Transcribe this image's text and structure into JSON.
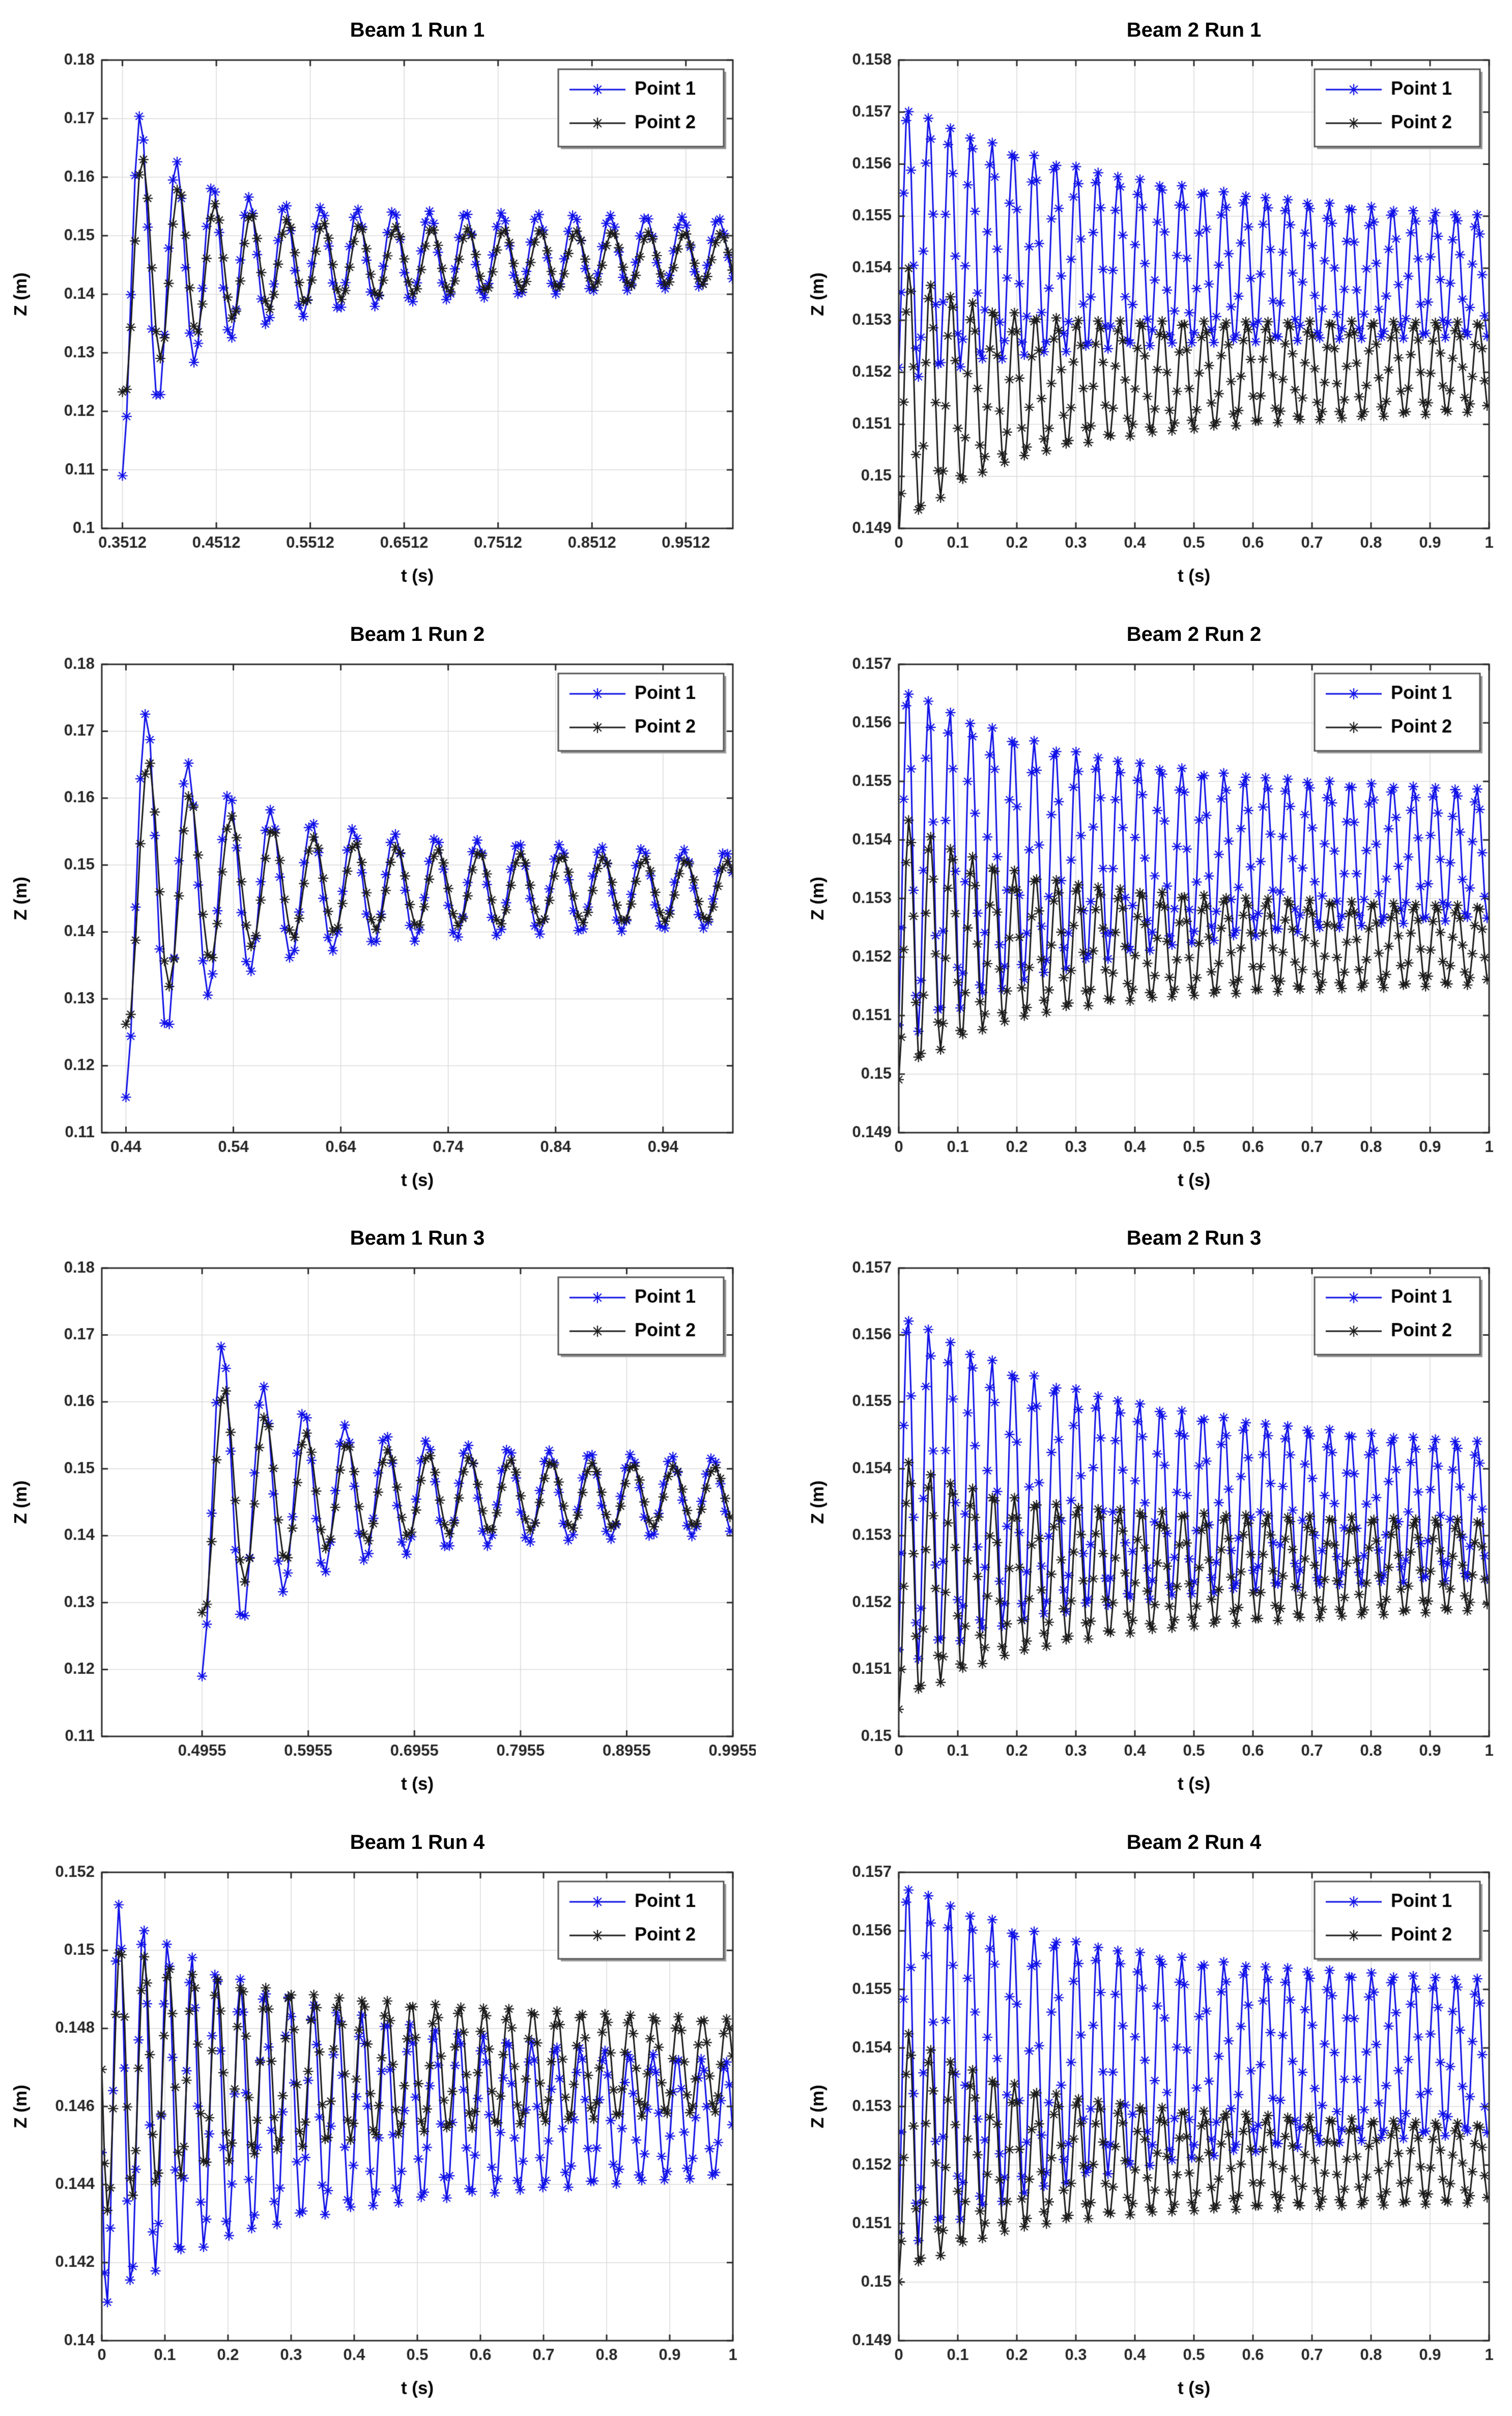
{
  "page": {
    "background": "#ffffff",
    "figure_rows": 4,
    "figure_cols": 2
  },
  "colors": {
    "point1": "#1010e8",
    "point2": "#1a1a1a",
    "grid": "#dadada",
    "axis_box": "#2b2b2b",
    "tick_label": "#262626",
    "legend_border": "#555555",
    "legend_bg": "#ffffff"
  },
  "chart_data": [
    {
      "id": "beam1-run1",
      "type": "line",
      "title": "Beam 1 Run 1",
      "xlabel": "t (s)",
      "ylabel": "Z (m)",
      "xlim": [
        0.3292,
        1.0012
      ],
      "ylim": [
        0.1,
        0.18
      ],
      "grid": true,
      "xtick_values": [
        0.3512,
        0.4512,
        0.5512,
        0.6512,
        0.7512,
        0.8512,
        0.9512
      ],
      "xtick_labels": [
        "0.3512",
        "0.4512",
        "0.5512",
        "0.6512",
        "0.7512",
        "0.8512",
        "0.9512"
      ],
      "ytick_values": [
        0.1,
        0.11,
        0.12,
        0.13,
        0.14,
        0.15,
        0.16,
        0.17,
        0.18
      ],
      "ytick_labels": [
        "0.1",
        "0.11",
        "0.12",
        "0.13",
        "0.14",
        "0.15",
        "0.16",
        "0.17",
        "0.18"
      ],
      "legend": {
        "position": "top-right",
        "entries": [
          "Point 1",
          "Point 2"
        ]
      },
      "series": [
        {
          "name": "Point 1",
          "color": "#1010e8",
          "marker": "asterisk",
          "signal": {
            "model": "damped_sine",
            "t_start": 0.3512,
            "t_end": 1.0012,
            "dt": 0.00448,
            "freq_hz": 26,
            "phase": -1.5708,
            "mean_start": 0.143,
            "mean_end": 0.1473,
            "mean_tau": 0.2,
            "amp_components": [
              {
                "a": 0.01,
                "tau": 1.2
              },
              {
                "a": 0.024,
                "tau": 0.06
              }
            ]
          }
        },
        {
          "name": "Point 2",
          "color": "#1a1a1a",
          "marker": "asterisk",
          "signal": {
            "model": "damped_sine",
            "t_start": 0.3512,
            "t_end": 1.0012,
            "dt": 0.00448,
            "freq_hz": 26,
            "phase": -1.97,
            "mean_start": 0.1445,
            "mean_end": 0.1462,
            "mean_tau": 0.25,
            "amp_components": [
              {
                "a": 0.007,
                "tau": 1.3
              },
              {
                "a": 0.016,
                "tau": 0.07
              }
            ]
          }
        }
      ]
    },
    {
      "id": "beam2-run1",
      "type": "line",
      "title": "Beam 2 Run 1",
      "xlabel": "t (s)",
      "ylabel": "Z (m)",
      "xlim": [
        0,
        1
      ],
      "ylim": [
        0.149,
        0.158
      ],
      "grid": true,
      "xtick_values": [
        0,
        0.1,
        0.2,
        0.3,
        0.4,
        0.5,
        0.6,
        0.7,
        0.8,
        0.9,
        1
      ],
      "xtick_labels": [
        "0",
        "0.1",
        "0.2",
        "0.3",
        "0.4",
        "0.5",
        "0.6",
        "0.7",
        "0.8",
        "0.9",
        "1"
      ],
      "ytick_values": [
        0.149,
        0.15,
        0.151,
        0.152,
        0.153,
        0.154,
        0.155,
        0.156,
        0.157,
        0.158
      ],
      "ytick_labels": [
        "0.149",
        "0.15",
        "0.151",
        "0.152",
        "0.153",
        "0.154",
        "0.155",
        "0.156",
        "0.157",
        "0.158"
      ],
      "legend": {
        "position": "top-right",
        "entries": [
          "Point 1",
          "Point 2"
        ]
      },
      "series": [
        {
          "name": "Point 1",
          "color": "#1010e8",
          "marker": "asterisk",
          "signal": {
            "model": "damped_sine",
            "t_start": 0,
            "t_end": 1,
            "dt": 0.00417,
            "freq_hz": 28,
            "phase": -1.1,
            "mean_start": 0.1545,
            "mean_end": 0.1537,
            "mean_tau": 0.6,
            "amp_components": [
              {
                "a": 0.0016,
                "tau": 3.0
              },
              {
                "a": 0.0011,
                "tau": 0.25
              }
            ]
          }
        },
        {
          "name": "Point 2",
          "color": "#1a1a1a",
          "marker": "asterisk",
          "signal": {
            "model": "damped_sine",
            "t_start": 0,
            "t_end": 1,
            "dt": 0.00417,
            "freq_hz": 28,
            "phase": -1.5,
            "mean_start": 0.1515,
            "mean_end": 0.1522,
            "mean_tau": 0.5,
            "amp_components": [
              {
                "a": 0.0012,
                "tau": 3.0
              },
              {
                "a": 0.0015,
                "tau": 0.12
              }
            ]
          }
        }
      ]
    },
    {
      "id": "beam1-run2",
      "type": "line",
      "title": "Beam 1 Run 2",
      "xlabel": "t (s)",
      "ylabel": "Z (m)",
      "xlim": [
        0.4175,
        1.005
      ],
      "ylim": [
        0.11,
        0.18
      ],
      "grid": true,
      "xtick_values": [
        0.44,
        0.54,
        0.64,
        0.74,
        0.84,
        0.94
      ],
      "xtick_labels": [
        "0.44",
        "0.54",
        "0.64",
        "0.74",
        "0.84",
        "0.94"
      ],
      "ytick_values": [
        0.11,
        0.12,
        0.13,
        0.14,
        0.15,
        0.16,
        0.17,
        0.18
      ],
      "ytick_labels": [
        "0.11",
        "0.12",
        "0.13",
        "0.14",
        "0.15",
        "0.16",
        "0.17",
        "0.18"
      ],
      "legend": {
        "position": "top-right",
        "entries": [
          "Point 1",
          "Point 2"
        ]
      },
      "series": [
        {
          "name": "Point 1",
          "color": "#1010e8",
          "marker": "asterisk",
          "signal": {
            "model": "damped_sine",
            "t_start": 0.44,
            "t_end": 1.005,
            "dt": 0.00448,
            "freq_hz": 26,
            "phase": -1.5708,
            "mean_start": 0.1468,
            "mean_end": 0.1462,
            "mean_tau": 0.4,
            "amp_components": [
              {
                "a": 0.0095,
                "tau": 1.1
              },
              {
                "a": 0.022,
                "tau": 0.07
              }
            ]
          }
        },
        {
          "name": "Point 2",
          "color": "#1a1a1a",
          "marker": "asterisk",
          "signal": {
            "model": "damped_sine",
            "t_start": 0.44,
            "t_end": 1.005,
            "dt": 0.00448,
            "freq_hz": 26,
            "phase": -1.9,
            "mean_start": 0.1475,
            "mean_end": 0.1457,
            "mean_tau": 0.4,
            "amp_components": [
              {
                "a": 0.007,
                "tau": 1.2
              },
              {
                "a": 0.0155,
                "tau": 0.07
              }
            ]
          }
        }
      ]
    },
    {
      "id": "beam2-run2",
      "type": "line",
      "title": "Beam 2 Run 2",
      "xlabel": "t (s)",
      "ylabel": "Z (m)",
      "xlim": [
        0,
        1
      ],
      "ylim": [
        0.149,
        0.157
      ],
      "grid": true,
      "xtick_values": [
        0,
        0.1,
        0.2,
        0.3,
        0.4,
        0.5,
        0.6,
        0.7,
        0.8,
        0.9,
        1
      ],
      "xtick_labels": [
        "0",
        "0.1",
        "0.2",
        "0.3",
        "0.4",
        "0.5",
        "0.6",
        "0.7",
        "0.8",
        "0.9",
        "1"
      ],
      "ytick_values": [
        0.149,
        0.15,
        0.151,
        0.152,
        0.153,
        0.154,
        0.155,
        0.156,
        0.157
      ],
      "ytick_labels": [
        "0.149",
        "0.15",
        "0.151",
        "0.152",
        "0.153",
        "0.154",
        "0.155",
        "0.156",
        "0.157"
      ],
      "legend": {
        "position": "top-right",
        "entries": [
          "Point 1",
          "Point 2"
        ]
      },
      "series": [
        {
          "name": "Point 1",
          "color": "#1010e8",
          "marker": "asterisk",
          "signal": {
            "model": "damped_sine",
            "t_start": 0,
            "t_end": 1,
            "dt": 0.00417,
            "freq_hz": 28,
            "phase": -1.1,
            "mean_start": 0.1536,
            "mean_end": 0.1538,
            "mean_tau": 0.6,
            "amp_components": [
              {
                "a": 0.0015,
                "tau": 3.0
              },
              {
                "a": 0.0016,
                "tau": 0.25
              }
            ]
          }
        },
        {
          "name": "Point 2",
          "color": "#1a1a1a",
          "marker": "asterisk",
          "signal": {
            "model": "damped_sine",
            "t_start": 0,
            "t_end": 1,
            "dt": 0.00417,
            "freq_hz": 28,
            "phase": -1.5,
            "mean_start": 0.1522,
            "mean_end": 0.1522,
            "mean_tau": 0.5,
            "amp_components": [
              {
                "a": 0.001,
                "tau": 2.5
              },
              {
                "a": 0.0013,
                "tau": 0.15
              }
            ]
          }
        }
      ]
    },
    {
      "id": "beam1-run3",
      "type": "line",
      "title": "Beam 1 Run 3",
      "xlabel": "t (s)",
      "ylabel": "Z (m)",
      "xlim": [
        0.401,
        0.9955
      ],
      "ylim": [
        0.11,
        0.18
      ],
      "grid": true,
      "xtick_values": [
        0.4955,
        0.5955,
        0.6955,
        0.7955,
        0.8955,
        0.9955
      ],
      "xtick_labels": [
        "0.4955",
        "0.5955",
        "0.6955",
        "0.7955",
        "0.8955",
        "0.9955"
      ],
      "ytick_values": [
        0.11,
        0.12,
        0.13,
        0.14,
        0.15,
        0.16,
        0.17,
        0.18
      ],
      "ytick_labels": [
        "0.11",
        "0.12",
        "0.13",
        "0.14",
        "0.15",
        "0.16",
        "0.17",
        "0.18"
      ],
      "legend": {
        "position": "top-right",
        "entries": [
          "Point 1",
          "Point 2"
        ]
      },
      "series": [
        {
          "name": "Point 1",
          "color": "#1010e8",
          "marker": "asterisk",
          "signal": {
            "model": "damped_sine",
            "t_start": 0.4955,
            "t_end": 0.9955,
            "dt": 0.00448,
            "freq_hz": 26,
            "phase": -1.5708,
            "mean_start": 0.146,
            "mean_end": 0.1458,
            "mean_tau": 0.4,
            "amp_components": [
              {
                "a": 0.009,
                "tau": 1.1
              },
              {
                "a": 0.018,
                "tau": 0.07
              }
            ]
          }
        },
        {
          "name": "Point 2",
          "color": "#1a1a1a",
          "marker": "asterisk",
          "signal": {
            "model": "damped_sine",
            "t_start": 0.4955,
            "t_end": 0.9955,
            "dt": 0.00448,
            "freq_hz": 26,
            "phase": -1.9,
            "mean_start": 0.1465,
            "mean_end": 0.1456,
            "mean_tau": 0.4,
            "amp_components": [
              {
                "a": 0.0065,
                "tau": 1.2
              },
              {
                "a": 0.0125,
                "tau": 0.07
              }
            ]
          }
        }
      ]
    },
    {
      "id": "beam2-run3",
      "type": "line",
      "title": "Beam 2 Run 3",
      "xlabel": "t (s)",
      "ylabel": "Z (m)",
      "xlim": [
        0,
        1
      ],
      "ylim": [
        0.15,
        0.157
      ],
      "grid": true,
      "xtick_values": [
        0,
        0.1,
        0.2,
        0.3,
        0.4,
        0.5,
        0.6,
        0.7,
        0.8,
        0.9,
        1
      ],
      "xtick_labels": [
        "0",
        "0.1",
        "0.2",
        "0.3",
        "0.4",
        "0.5",
        "0.6",
        "0.7",
        "0.8",
        "0.9",
        "1"
      ],
      "ytick_values": [
        0.15,
        0.151,
        0.152,
        0.153,
        0.154,
        0.155,
        0.156,
        0.157
      ],
      "ytick_labels": [
        "0.15",
        "0.151",
        "0.152",
        "0.153",
        "0.154",
        "0.155",
        "0.156",
        "0.157"
      ],
      "legend": {
        "position": "top-right",
        "entries": [
          "Point 1",
          "Point 2"
        ]
      },
      "series": [
        {
          "name": "Point 1",
          "color": "#1010e8",
          "marker": "asterisk",
          "signal": {
            "model": "damped_sine",
            "t_start": 0,
            "t_end": 1,
            "dt": 0.00417,
            "freq_hz": 28,
            "phase": -1.1,
            "mean_start": 0.1537,
            "mean_end": 0.1533,
            "mean_tau": 0.6,
            "amp_components": [
              {
                "a": 0.0014,
                "tau": 3.0
              },
              {
                "a": 0.0013,
                "tau": 0.25
              }
            ]
          }
        },
        {
          "name": "Point 2",
          "color": "#1a1a1a",
          "marker": "asterisk",
          "signal": {
            "model": "damped_sine",
            "t_start": 0,
            "t_end": 1,
            "dt": 0.00417,
            "freq_hz": 28,
            "phase": -1.5,
            "mean_start": 0.1523,
            "mean_end": 0.1526,
            "mean_tau": 0.5,
            "amp_components": [
              {
                "a": 0.001,
                "tau": 2.5
              },
              {
                "a": 0.0009,
                "tau": 0.15
              }
            ]
          }
        }
      ]
    },
    {
      "id": "beam1-run4",
      "type": "line",
      "title": "Beam 1 Run 4",
      "xlabel": "t (s)",
      "ylabel": "Z (m)",
      "xlim": [
        0,
        1
      ],
      "ylim": [
        0.14,
        0.152
      ],
      "grid": true,
      "xtick_values": [
        0,
        0.1,
        0.2,
        0.3,
        0.4,
        0.5,
        0.6,
        0.7,
        0.8,
        0.9,
        1
      ],
      "xtick_labels": [
        "0",
        "0.1",
        "0.2",
        "0.3",
        "0.4",
        "0.5",
        "0.6",
        "0.7",
        "0.8",
        "0.9",
        "1"
      ],
      "ytick_values": [
        0.14,
        0.142,
        0.144,
        0.146,
        0.148,
        0.15,
        0.152
      ],
      "ytick_labels": [
        "0.14",
        "0.142",
        "0.144",
        "0.146",
        "0.148",
        "0.15",
        "0.152"
      ],
      "legend": {
        "position": "top-right",
        "entries": [
          "Point 1",
          "Point 2"
        ]
      },
      "series": [
        {
          "name": "Point 1",
          "color": "#1010e8",
          "marker": "asterisk",
          "signal": {
            "model": "damped_sine",
            "t_start": 0,
            "t_end": 1,
            "dt": 0.00448,
            "freq_hz": 26,
            "phase": 3.4,
            "mean_start": 0.1462,
            "mean_end": 0.1456,
            "mean_tau": 0.5,
            "amp_components": [
              {
                "a": 0.003,
                "tau": 1.4
              },
              {
                "a": 0.0024,
                "tau": 0.18
              }
            ]
          }
        },
        {
          "name": "Point 2",
          "color": "#1a1a1a",
          "marker": "asterisk",
          "signal": {
            "model": "damped_sine",
            "t_start": 0,
            "t_end": 1,
            "dt": 0.00448,
            "freq_hz": 26,
            "phase": 3.1,
            "mean_start": 0.1468,
            "mean_end": 0.1471,
            "mean_tau": 0.5,
            "amp_components": [
              {
                "a": 0.0022,
                "tau": 1.6
              },
              {
                "a": 0.0014,
                "tau": 0.15
              }
            ]
          }
        }
      ]
    },
    {
      "id": "beam2-run4",
      "type": "line",
      "title": "Beam 2 Run 4",
      "xlabel": "t (s)",
      "ylabel": "Z (m)",
      "xlim": [
        0,
        1
      ],
      "ylim": [
        0.149,
        0.157
      ],
      "grid": true,
      "xtick_values": [
        0,
        0.1,
        0.2,
        0.3,
        0.4,
        0.5,
        0.6,
        0.7,
        0.8,
        0.9,
        1
      ],
      "xtick_labels": [
        "0",
        "0.1",
        "0.2",
        "0.3",
        "0.4",
        "0.5",
        "0.6",
        "0.7",
        "0.8",
        "0.9",
        "1"
      ],
      "ytick_values": [
        0.149,
        0.15,
        0.151,
        0.152,
        0.153,
        0.154,
        0.155,
        0.156,
        0.157
      ],
      "ytick_labels": [
        "0.149",
        "0.15",
        "0.151",
        "0.152",
        "0.153",
        "0.154",
        "0.155",
        "0.156",
        "0.157"
      ],
      "legend": {
        "position": "top-right",
        "entries": [
          "Point 1",
          "Point 2"
        ]
      },
      "series": [
        {
          "name": "Point 1",
          "color": "#1010e8",
          "marker": "asterisk",
          "signal": {
            "model": "damped_sine",
            "t_start": 0,
            "t_end": 1,
            "dt": 0.00417,
            "freq_hz": 28,
            "phase": -1.1,
            "mean_start": 0.1537,
            "mean_end": 0.1539,
            "mean_tau": 0.6,
            "amp_components": [
              {
                "a": 0.0018,
                "tau": 3.0
              },
              {
                "a": 0.0014,
                "tau": 0.25
              }
            ]
          }
        },
        {
          "name": "Point 2",
          "color": "#1a1a1a",
          "marker": "asterisk",
          "signal": {
            "model": "damped_sine",
            "t_start": 0,
            "t_end": 1,
            "dt": 0.00417,
            "freq_hz": 28,
            "phase": -1.5,
            "mean_start": 0.1522,
            "mean_end": 0.152,
            "mean_tau": 0.5,
            "amp_components": [
              {
                "a": 0.001,
                "tau": 2.5
              },
              {
                "a": 0.0012,
                "tau": 0.15
              }
            ]
          }
        }
      ]
    }
  ]
}
